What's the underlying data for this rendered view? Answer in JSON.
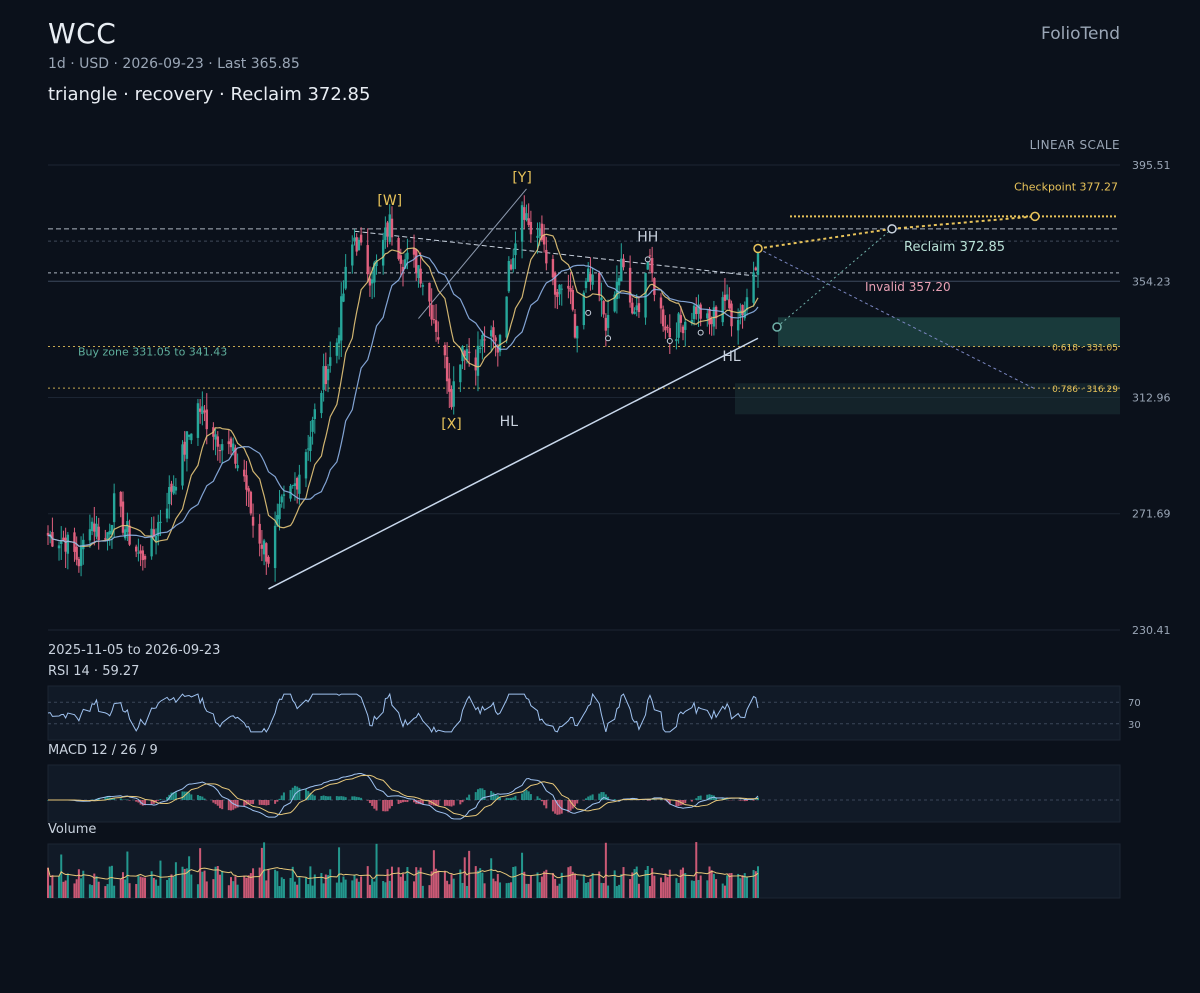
{
  "header": {
    "ticker": "WCC",
    "meta": "1d · USD · 2026-09-23 · Last 365.85",
    "pattern": "triangle · recovery · Reclaim 372.85",
    "brand": "FolioTend",
    "scale_label": "LINEAR SCALE"
  },
  "panels": {
    "range_label": "2025-11-05 to 2026-09-23",
    "rsi_label": "RSI 14 · 59.27",
    "macd_label": "MACD 12 / 26 / 9",
    "volume_label": "Volume"
  },
  "colors": {
    "up": "#26a69a",
    "down": "#e0607e",
    "ma_fast": "#e6c77a",
    "ma_slow": "#8fb4e8",
    "gold": "#e8c35a",
    "grid": "#1c2533",
    "trend": "#c9d8ec",
    "zone": "#2a6d64"
  },
  "chart_data": {
    "type": "candlestick",
    "symbol": "WCC",
    "interval": "1d",
    "date_range": [
      "2025-11-05",
      "2026-09-23"
    ],
    "last": 365.85,
    "y_ticks": [
      395.51,
      354.23,
      312.96,
      271.69,
      230.41
    ],
    "ylim": [
      230.41,
      395.51
    ],
    "path_points": [
      [
        "2025-11-05",
        264
      ],
      [
        "2025-11-13",
        262
      ],
      [
        "2025-11-19",
        255
      ],
      [
        "2025-11-24",
        270
      ],
      [
        "2025-12-01",
        262
      ],
      [
        "2025-12-05",
        275
      ],
      [
        "2025-12-11",
        265
      ],
      [
        "2025-12-17",
        256
      ],
      [
        "2025-12-22",
        262
      ],
      [
        "2026-01-02",
        285
      ],
      [
        "2026-01-12",
        310
      ],
      [
        "2026-01-16",
        305
      ],
      [
        "2026-01-22",
        298
      ],
      [
        "2026-01-27",
        294
      ],
      [
        "2026-02-02",
        285
      ],
      [
        "2026-02-06",
        268
      ],
      [
        "2026-02-11",
        260
      ],
      [
        "2026-02-13",
        256
      ],
      [
        "2026-02-19",
        274
      ],
      [
        "2026-02-25",
        282
      ],
      [
        "2026-03-04",
        300
      ],
      [
        "2026-03-10",
        320
      ],
      [
        "2026-03-16",
        333
      ],
      [
        "2026-03-20",
        356
      ],
      [
        "2026-03-24",
        370
      ],
      [
        "2026-03-31",
        357
      ],
      [
        "2026-04-03",
        360
      ],
      [
        "2026-04-09",
        375
      ],
      [
        "2026-04-15",
        362
      ],
      [
        "2026-04-22",
        360
      ],
      [
        "2026-04-29",
        342
      ],
      [
        "2026-05-05",
        322
      ],
      [
        "2026-05-07",
        314
      ],
      [
        "2026-05-12",
        332
      ],
      [
        "2026-05-18",
        327
      ],
      [
        "2026-05-22",
        335
      ],
      [
        "2026-05-28",
        331
      ],
      [
        "2026-06-02",
        358
      ],
      [
        "2026-06-08",
        383
      ],
      [
        "2026-06-12",
        372
      ],
      [
        "2026-06-18",
        368
      ],
      [
        "2026-06-23",
        348
      ],
      [
        "2026-06-29",
        352
      ],
      [
        "2026-07-02",
        335
      ],
      [
        "2026-07-08",
        355
      ],
      [
        "2026-07-13",
        348
      ],
      [
        "2026-07-17",
        338
      ],
      [
        "2026-07-23",
        360
      ],
      [
        "2026-07-29",
        340
      ],
      [
        "2026-08-04",
        362
      ],
      [
        "2026-08-10",
        343
      ],
      [
        "2026-08-14",
        336
      ],
      [
        "2026-08-20",
        340
      ],
      [
        "2026-08-26",
        345
      ],
      [
        "2026-09-01",
        338
      ],
      [
        "2026-09-07",
        350
      ],
      [
        "2026-09-11",
        342
      ],
      [
        "2026-09-17",
        345
      ],
      [
        "2026-09-23",
        365.85
      ]
    ],
    "levels": {
      "checkpoint": {
        "label": "Checkpoint 377.27",
        "value": 377.27
      },
      "reclaim": {
        "label": "Reclaim 372.85",
        "value": 372.85
      },
      "invalid": {
        "label": "Invalid 357.20",
        "value": 357.2
      },
      "fib_618": {
        "label": "0.618 · 331.05",
        "value": 331.05
      },
      "fib_786": {
        "label": "0.786 · 316.29",
        "value": 316.29
      },
      "buy_zone": {
        "label": "Buy zone 331.05 to 341.43",
        "low": 331.05,
        "high": 341.43
      }
    },
    "wave_labels": [
      {
        "text": "[W]",
        "date": "2026-04-09",
        "value": 375
      },
      {
        "text": "[X]",
        "date": "2026-05-07",
        "value": 314
      },
      {
        "text": "[Y]",
        "date": "2026-06-08",
        "value": 383
      },
      {
        "text": "HH",
        "date": "2026-08-04",
        "value": 362
      },
      {
        "text": "HL",
        "date": "2026-06-02",
        "value": 310
      },
      {
        "text": "HL",
        "date": "2026-09-11",
        "value": 333
      }
    ],
    "rsi": {
      "period": 14,
      "last": 59.27,
      "levels": [
        70,
        30
      ]
    },
    "macd": {
      "fast": 12,
      "slow": 26,
      "signal": 9
    }
  }
}
